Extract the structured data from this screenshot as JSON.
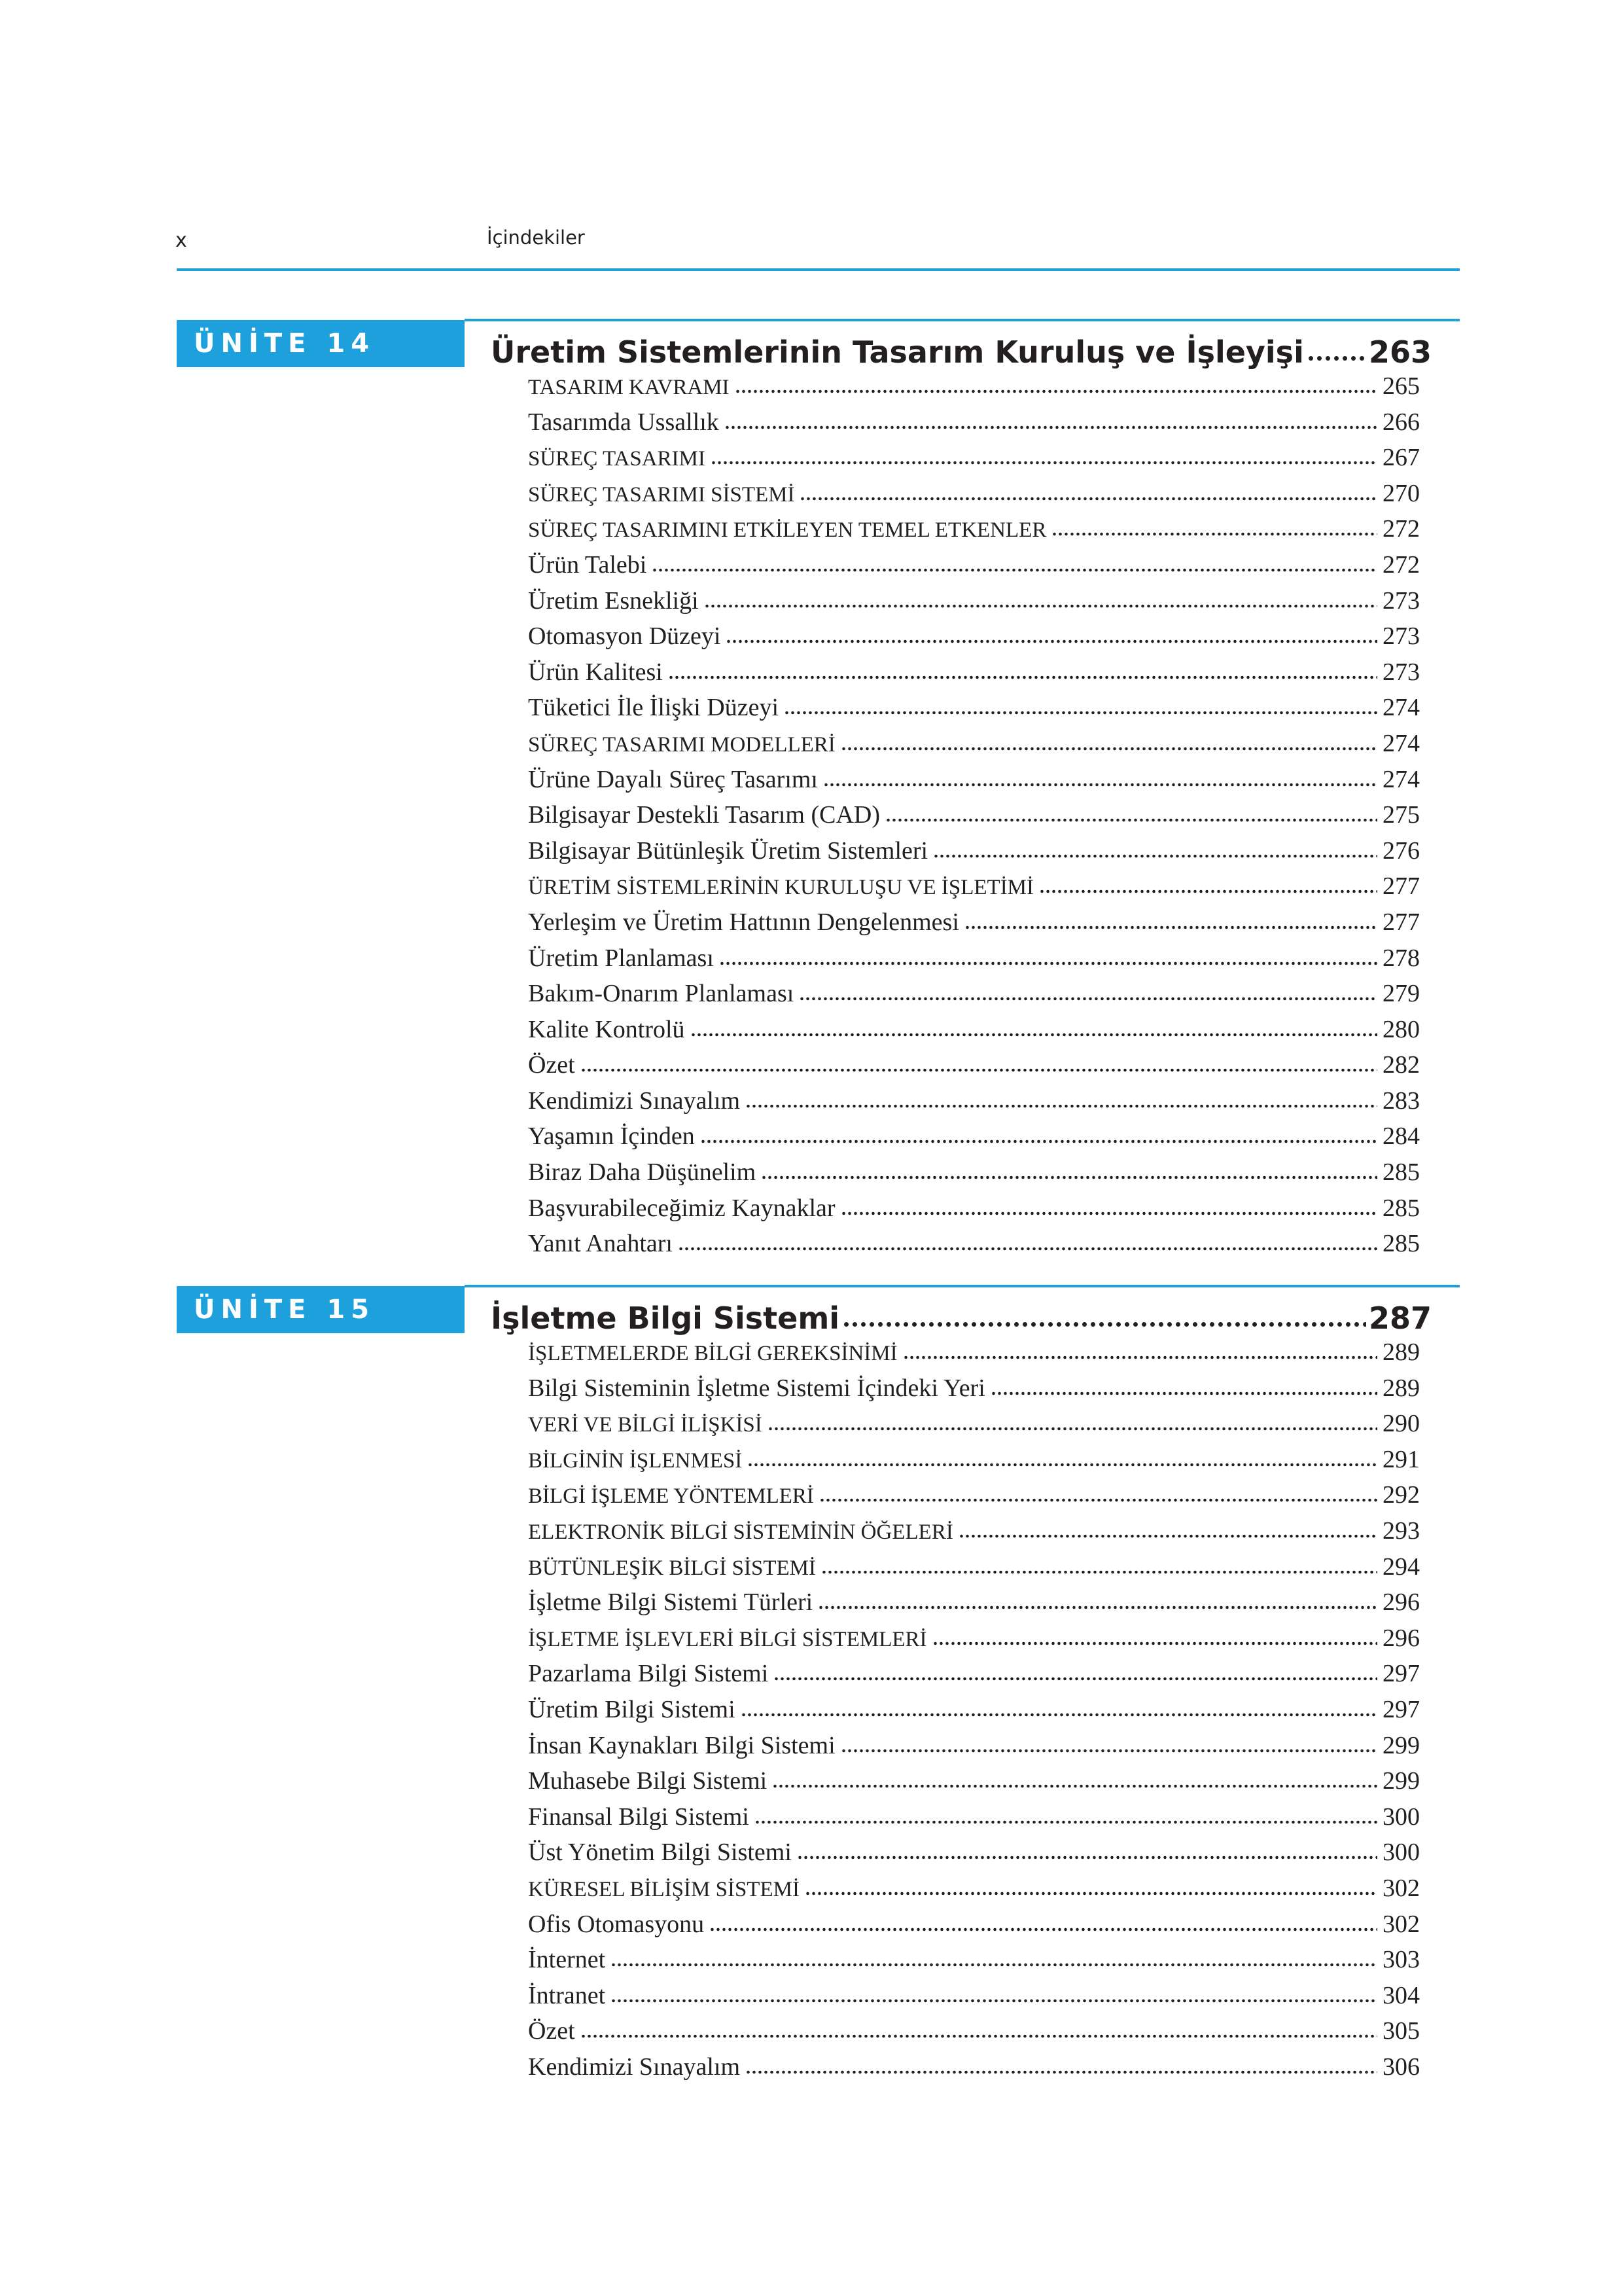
{
  "header": {
    "page": "x",
    "title": "İçindekiler"
  },
  "units": [
    {
      "label": "ÜNİTE 14",
      "title": "Üretim Sistemlerinin Tasarım Kuruluş ve İşleyişi",
      "page": "263",
      "entries": [
        {
          "text": "TASARIM KAVRAMI",
          "page": "265"
        },
        {
          "text": "Tasarımda Ussallık",
          "page": "266"
        },
        {
          "text": "SÜREÇ TASARIMI",
          "page": "267"
        },
        {
          "text": "SÜREÇ TASARIMI SİSTEMİ",
          "page": "270"
        },
        {
          "text": "SÜREÇ TASARIMINI ETKİLEYEN TEMEL ETKENLER",
          "page": "272"
        },
        {
          "text": "Ürün Talebi",
          "page": "272"
        },
        {
          "text": "Üretim Esnekliği",
          "page": "273"
        },
        {
          "text": "Otomasyon Düzeyi",
          "page": "273"
        },
        {
          "text": "Ürün Kalitesi",
          "page": "273"
        },
        {
          "text": "Tüketici İle İlişki Düzeyi",
          "page": "274"
        },
        {
          "text": "SÜREÇ TASARIMI MODELLERİ",
          "page": "274"
        },
        {
          "text": "Ürüne Dayalı Süreç Tasarımı",
          "page": "274"
        },
        {
          "text": "Bilgisayar Destekli Tasarım (CAD)",
          "page": "275"
        },
        {
          "text": "Bilgisayar Bütünleşik Üretim Sistemleri",
          "page": "276"
        },
        {
          "text": "ÜRETİM SİSTEMLERİNİN KURULUŞU VE İŞLETİMİ",
          "page": "277"
        },
        {
          "text": "Yerleşim ve Üretim Hattının Dengelenmesi",
          "page": "277"
        },
        {
          "text": "Üretim Planlaması",
          "page": "278"
        },
        {
          "text": "Bakım-Onarım Planlaması",
          "page": "279"
        },
        {
          "text": "Kalite Kontrolü",
          "page": "280"
        },
        {
          "text": "Özet",
          "page": "282"
        },
        {
          "text": "Kendimizi Sınayalım",
          "page": "283"
        },
        {
          "text": "Yaşamın İçinden",
          "page": "284"
        },
        {
          "text": "Biraz Daha Düşünelim",
          "page": "285"
        },
        {
          "text": "Başvurabileceğimiz Kaynaklar",
          "page": "285"
        },
        {
          "text": "Yanıt Anahtarı",
          "page": "285"
        }
      ]
    },
    {
      "label": "ÜNİTE 15",
      "title": "İşletme Bilgi Sistemi",
      "page": "287",
      "entries": [
        {
          "text": "İŞLETMELERDE BİLGİ GEREKSİNİMİ",
          "page": "289"
        },
        {
          "text": "Bilgi Sisteminin İşletme Sistemi İçindeki Yeri",
          "page": "289"
        },
        {
          "text": "VERİ VE BİLGİ İLİŞKİSİ",
          "page": "290"
        },
        {
          "text": "BİLGİNİN İŞLENMESİ",
          "page": "291"
        },
        {
          "text": "BİLGİ İŞLEME YÖNTEMLERİ",
          "page": "292"
        },
        {
          "text": "ELEKTRONİK BİLGİ SİSTEMİNİN ÖĞELERİ",
          "page": "293"
        },
        {
          "text": "BÜTÜNLEŞİK BİLGİ SİSTEMİ",
          "page": "294"
        },
        {
          "text": "İşletme Bilgi Sistemi Türleri",
          "page": "296"
        },
        {
          "text": "İŞLETME İŞLEVLERİ BİLGİ SİSTEMLERİ",
          "page": "296"
        },
        {
          "text": "Pazarlama Bilgi Sistemi",
          "page": "297"
        },
        {
          "text": "Üretim Bilgi Sistemi",
          "page": "297"
        },
        {
          "text": "İnsan Kaynakları Bilgi Sistemi",
          "page": "299"
        },
        {
          "text": "Muhasebe Bilgi Sistemi",
          "page": "299"
        },
        {
          "text": "Finansal Bilgi Sistemi",
          "page": "300"
        },
        {
          "text": "Üst Yönetim Bilgi Sistemi",
          "page": "300"
        },
        {
          "text": "KÜRESEL BİLİŞİM SİSTEMİ",
          "page": "302"
        },
        {
          "text": "Ofis Otomasyonu",
          "page": "302"
        },
        {
          "text": "İnternet",
          "page": "303"
        },
        {
          "text": "İntranet",
          "page": "304"
        },
        {
          "text": "Özet",
          "page": "305"
        },
        {
          "text": "Kendimizi Sınayalım",
          "page": "306"
        }
      ]
    }
  ]
}
